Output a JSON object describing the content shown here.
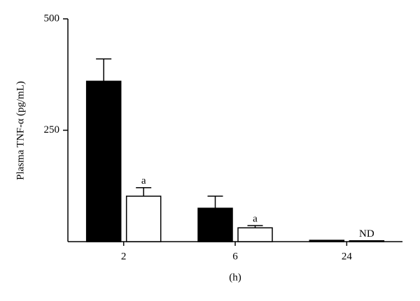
{
  "chart_data": {
    "type": "bar",
    "y_label": "Plasma TNF-α (pg/mL)",
    "x_label": "(h)",
    "categories": [
      "2",
      "6",
      "24"
    ],
    "series": [
      {
        "color": "#000000",
        "values": [
          360,
          75,
          3
        ],
        "errors": [
          50,
          27,
          null
        ]
      },
      {
        "color": "#ffffff",
        "values": [
          102,
          31,
          2
        ],
        "errors": [
          19,
          5,
          null
        ],
        "labels": [
          "a",
          "a",
          "ND"
        ]
      }
    ],
    "ylim": [
      0,
      500
    ],
    "yticks": [
      250,
      500
    ]
  }
}
